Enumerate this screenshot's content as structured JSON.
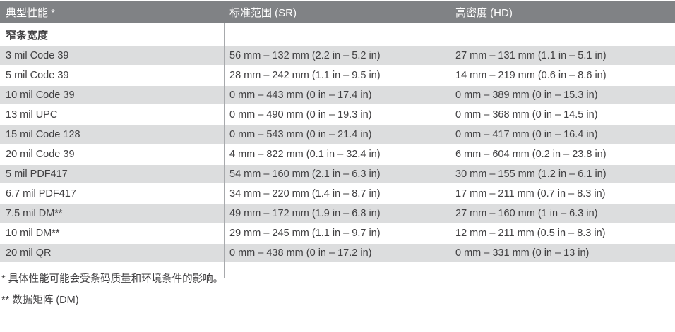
{
  "colors": {
    "header_bg": "#808285",
    "header_text": "#ffffff",
    "stripe_bg": "#dcddde",
    "row_bg": "#ffffff",
    "text": "#414042",
    "rule": "#a7a9ac"
  },
  "table": {
    "columns": [
      {
        "label": "典型性能 *"
      },
      {
        "label": "标准范围 (SR)"
      },
      {
        "label": "高密度 (HD)"
      }
    ],
    "section_label": "窄条宽度",
    "rows": [
      {
        "label": "3 mil Code 39",
        "sr": "56 mm – 132 mm (2.2 in – 5.2 in)",
        "hd": "27 mm – 131 mm (1.1 in – 5.1 in)"
      },
      {
        "label": "5 mil Code 39",
        "sr": "28 mm – 242 mm (1.1 in – 9.5 in)",
        "hd": "14 mm – 219 mm (0.6 in – 8.6 in)"
      },
      {
        "label": "10 mil Code 39",
        "sr": "0 mm – 443 mm (0 in – 17.4 in)",
        "hd": "0 mm – 389 mm (0 in – 15.3 in)"
      },
      {
        "label": "13 mil UPC",
        "sr": "0 mm – 490 mm (0 in – 19.3 in)",
        "hd": "0 mm – 368 mm (0 in – 14.5 in)"
      },
      {
        "label": "15 mil Code 128",
        "sr": "0 mm – 543 mm (0 in – 21.4 in)",
        "hd": "0 mm – 417 mm (0 in – 16.4 in)"
      },
      {
        "label": "20 mil Code 39",
        "sr": "4 mm – 822 mm (0.1 in – 32.4 in)",
        "hd": "6 mm – 604 mm (0.2 in – 23.8 in)"
      },
      {
        "label": "5 mil PDF417",
        "sr": "54 mm – 160 mm (2.1 in – 6.3 in)",
        "hd": "30 mm – 155 mm (1.2 in – 6.1 in)"
      },
      {
        "label": "6.7 mil PDF417",
        "sr": "34 mm – 220 mm (1.4 in – 8.7 in)",
        "hd": "17 mm – 211 mm (0.7 in – 8.3 in)"
      },
      {
        "label": "7.5 mil DM**",
        "sr": "49 mm – 172 mm (1.9 in – 6.8 in)",
        "hd": "27 mm – 160 mm (1 in – 6.3 in)"
      },
      {
        "label": "10 mil DM**",
        "sr": "29 mm – 245 mm (1.1 in – 9.7 in)",
        "hd": "12 mm – 211 mm (0.5 in – 8.3 in)"
      },
      {
        "label": "20 mil QR",
        "sr": "0 mm – 438 mm (0 in – 17.2 in)",
        "hd": "0 mm – 331 mm (0 in – 13 in)"
      }
    ],
    "footnotes": [
      "* 具体性能可能会受条码质量和环境条件的影响。",
      "** 数据矩阵 (DM)"
    ]
  }
}
